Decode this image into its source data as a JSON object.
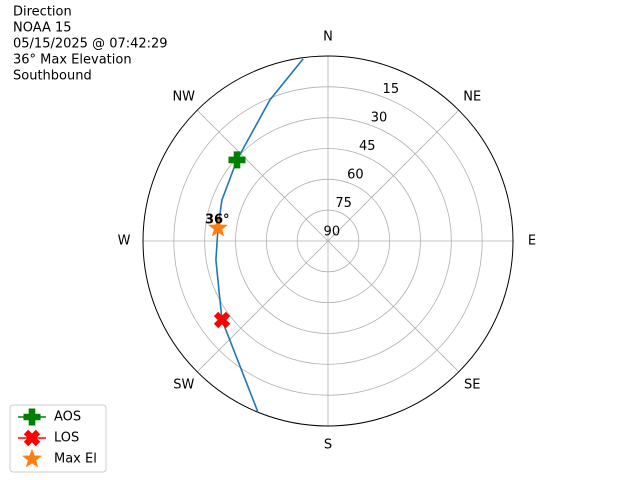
{
  "chart_data": {
    "type": "polar",
    "title_lines": [
      "Direction",
      "NOAA 15",
      "05/15/2025 @ 07:42:29",
      "36° Max Elevation",
      "Southbound"
    ],
    "rlim": [
      90,
      0
    ],
    "rticks": [
      90,
      75,
      60,
      45,
      30,
      15
    ],
    "thetaticks": [
      {
        "value": 0,
        "label": "N"
      },
      {
        "value": 45,
        "label": "NE"
      },
      {
        "value": 90,
        "label": "E"
      },
      {
        "value": 135,
        "label": "SE"
      },
      {
        "value": 180,
        "label": "S"
      },
      {
        "value": 225,
        "label": "SW"
      },
      {
        "value": 270,
        "label": "W"
      },
      {
        "value": 315,
        "label": "NW"
      }
    ],
    "grid": true,
    "legend": "lower left",
    "series": [
      {
        "color": "#1f77b4",
        "az": [
          352.2,
          337.6,
          311.7,
          291.1,
          276.7,
          260.4,
          233.3,
          202.3
        ],
        "el": [
          0.6,
          15.8,
          30.7,
          34.7,
          36.1,
          34.7,
          25.7,
          0.1
        ]
      }
    ],
    "markers": [
      {
        "name": "AOS",
        "color": "green",
        "marker": "plus",
        "az": 311.7,
        "el": 30.7
      },
      {
        "name": "LOS",
        "color": "red",
        "marker": "x",
        "az": 233.3,
        "el": 25.7
      },
      {
        "name": "Max El",
        "color": "#ff7f0e",
        "marker": "star",
        "az": 276.7,
        "el": 36.1
      }
    ],
    "annotation": "36°"
  }
}
